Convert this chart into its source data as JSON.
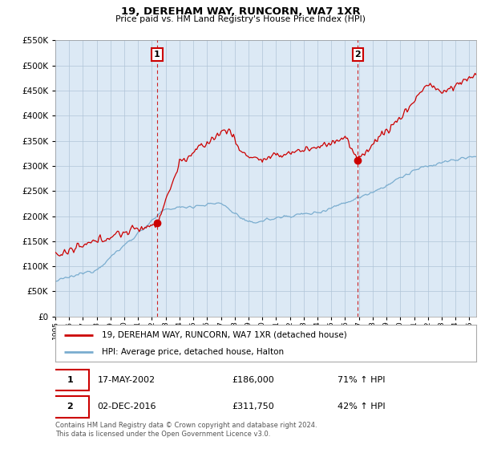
{
  "title": "19, DEREHAM WAY, RUNCORN, WA7 1XR",
  "subtitle": "Price paid vs. HM Land Registry's House Price Index (HPI)",
  "legend_line1": "19, DEREHAM WAY, RUNCORN, WA7 1XR (detached house)",
  "legend_line2": "HPI: Average price, detached house, Halton",
  "footnote": "Contains HM Land Registry data © Crown copyright and database right 2024.\nThis data is licensed under the Open Government Licence v3.0.",
  "sale1_date": "17-MAY-2002",
  "sale1_price": "£186,000",
  "sale1_hpi": "71% ↑ HPI",
  "sale1_year": 2002.38,
  "sale1_value": 186000,
  "sale2_date": "02-DEC-2016",
  "sale2_price": "£311,750",
  "sale2_hpi": "42% ↑ HPI",
  "sale2_year": 2016.92,
  "sale2_value": 311750,
  "ylim": [
    0,
    550000
  ],
  "xlim_start": 1995,
  "xlim_end": 2025.5,
  "red_color": "#cc0000",
  "blue_color": "#7aadcf",
  "dashed_color": "#cc0000",
  "bg_color": "#ffffff",
  "plot_bg_color": "#dce9f5",
  "grid_color": "#b0c4d8",
  "sale_box_color": "#cc0000"
}
